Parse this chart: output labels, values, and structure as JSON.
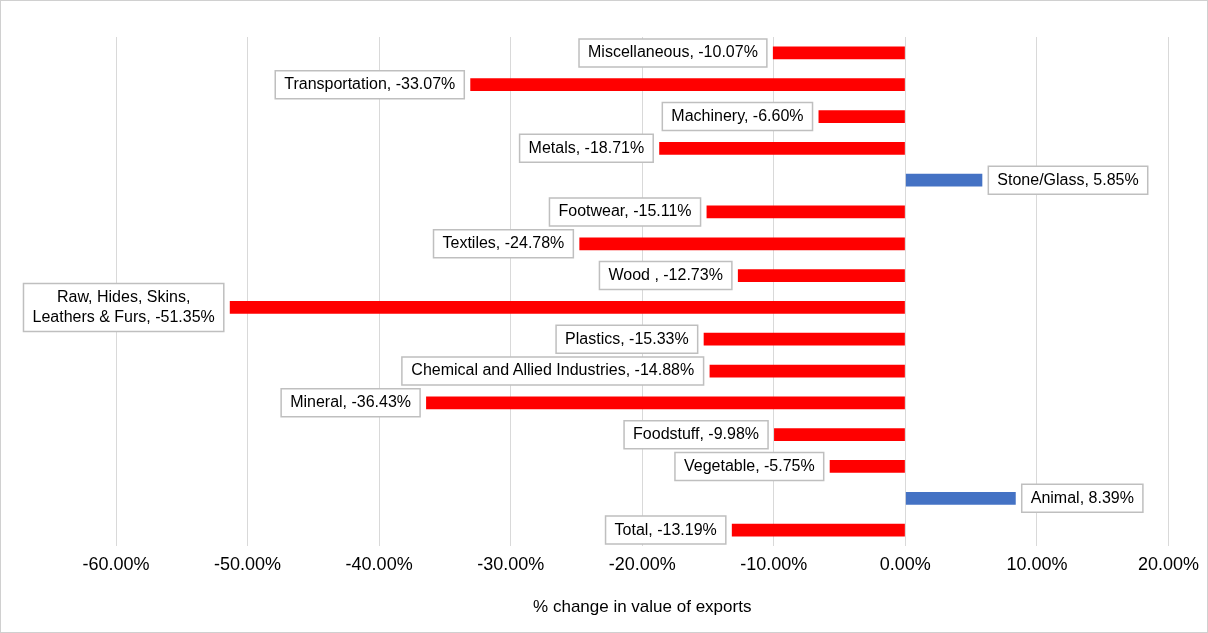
{
  "chart_data": {
    "type": "bar",
    "orientation": "horizontal",
    "categories": [
      null,
      null,
      null,
      null,
      null,
      null,
      null,
      null,
      null,
      null,
      null,
      null,
      null,
      null,
      null,
      null
    ],
    "values": [
      -10.07,
      -33.07,
      -6.6,
      -18.71,
      5.85,
      -15.11,
      -24.78,
      -12.73,
      -51.35,
      -15.33,
      -14.88,
      -36.43,
      -9.98,
      -5.75,
      8.39,
      -13.19
    ],
    "colors": [
      "#ff0000",
      "#ff0000",
      "#ff0000",
      "#ff0000",
      "#4472c4",
      "#ff0000",
      "#ff0000",
      "#ff0000",
      "#ff0000",
      "#ff0000",
      "#ff0000",
      "#ff0000",
      "#ff0000",
      "#ff0000",
      "#4472c4",
      "#ff0000"
    ],
    "value_labels": [
      "Miscellaneous, -10.07%",
      "Transportation, -33.07%",
      "Machinery, -6.60%",
      "Metals, -18.71%",
      "Stone/Glass, 5.85%",
      "Footwear, -15.11%",
      "Textiles, -24.78%",
      "Wood , -12.73%",
      "Raw, Hides, Skins, Leathers & Furs, -51.35%",
      "Plastics, -15.33%",
      "Chemical and Allied Industries, -14.88%",
      "Mineral, -36.43%",
      "Foodstuff, -9.98%",
      "Vegetable, -5.75%",
      "Animal, 8.39%",
      "Total, -13.19%"
    ],
    "xlim": [
      -60,
      20
    ],
    "xticks": [
      {
        "value": -60,
        "label": "-60.00%"
      },
      {
        "value": -50,
        "label": "-50.00%"
      },
      {
        "value": -40,
        "label": "-40.00%"
      },
      {
        "value": -30,
        "label": "-30.00%"
      },
      {
        "value": -20,
        "label": "-20.00%"
      },
      {
        "value": -10,
        "label": "-10.00%"
      },
      {
        "value": 0,
        "label": "0.00%"
      },
      {
        "value": 10,
        "label": "10.00%"
      },
      {
        "value": 20,
        "label": "20.00%"
      }
    ],
    "xlabel": "% change in value of exports",
    "grid": "x",
    "tick_labels": "x"
  }
}
